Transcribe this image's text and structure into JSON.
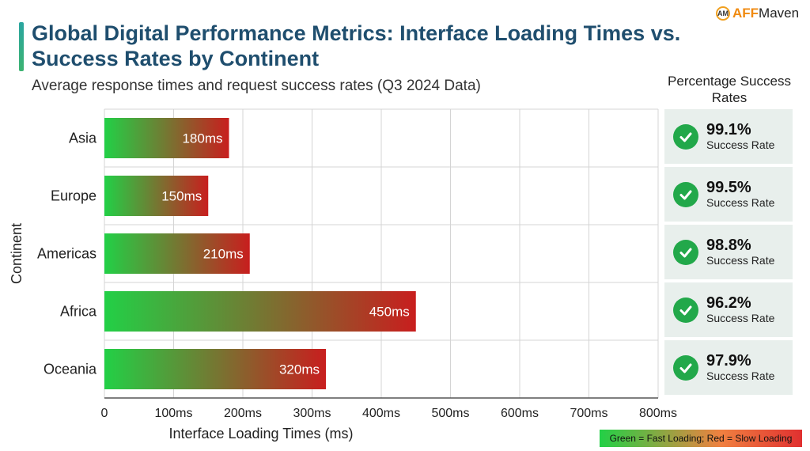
{
  "header": {
    "title": "Global Digital Performance Metrics: Interface Loading Times vs. Success Rates by Continent",
    "subtitle": "Average response times and request success rates (Q3 2024 Data)"
  },
  "logo": {
    "mark": "AM",
    "part1": "AFF",
    "part2": "Maven"
  },
  "chart_data": {
    "type": "bar",
    "orientation": "horizontal",
    "categories": [
      "Asia",
      "Europe",
      "Americas",
      "Africa",
      "Oceania"
    ],
    "values": [
      180,
      150,
      210,
      450,
      320
    ],
    "value_labels": [
      "180ms",
      "150ms",
      "210ms",
      "450ms",
      "320ms"
    ],
    "xlabel": "Interface Loading Times (ms)",
    "ylabel": "Continent",
    "xlim": [
      0,
      800
    ],
    "xticks": [
      0,
      100,
      200,
      300,
      400,
      500,
      600,
      700,
      800
    ],
    "xtick_labels": [
      "0",
      "100ms",
      "200ms",
      "300ms",
      "400ms",
      "500ms",
      "600ms",
      "700ms",
      "800ms"
    ],
    "grid": true,
    "bar_gradient": {
      "start": "#22d046",
      "end": "#c81e1e"
    }
  },
  "success_panel": {
    "title": "Percentage Success Rates",
    "item_label": "Success Rate",
    "rates": [
      "99.1%",
      "99.5%",
      "98.8%",
      "96.2%",
      "97.9%"
    ]
  },
  "legend_note": "Green = Fast Loading; Red = Slow Loading"
}
